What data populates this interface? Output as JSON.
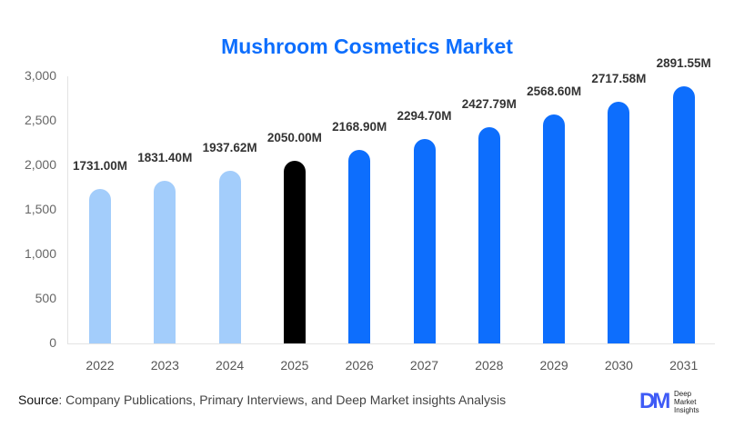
{
  "chart_data": {
    "type": "bar",
    "title": "Mushroom Cosmetics Market",
    "xlabel": "",
    "ylabel": "",
    "ylim": [
      0,
      3000
    ],
    "yticks": [
      "0",
      "500",
      "1,000",
      "1,500",
      "2,000",
      "2,500",
      "3,000"
    ],
    "grid": false,
    "categories": [
      "2022",
      "2023",
      "2024",
      "2025",
      "2026",
      "2027",
      "2028",
      "2029",
      "2030",
      "2031"
    ],
    "values": [
      1731.0,
      1831.4,
      1937.62,
      2050.0,
      2168.9,
      2294.7,
      2427.79,
      2568.6,
      2717.58,
      2891.55
    ],
    "labels": [
      "1731.00M",
      "1831.40M",
      "1937.62M",
      "2050.00M",
      "2168.90M",
      "2294.70M",
      "2427.79M",
      "2568.60M",
      "2717.58M",
      "2891.55M"
    ],
    "colors": [
      "#a3cdfb",
      "#a3cdfb",
      "#a3cdfb",
      "#000000",
      "#0d6efd",
      "#0d6efd",
      "#0d6efd",
      "#0d6efd",
      "#0d6efd",
      "#0d6efd"
    ],
    "legend": null
  },
  "footer": {
    "source_label": "Source",
    "source_text": ": Company Publications, Primary Interviews, and Deep Market insights Analysis",
    "logo_mark": "DM",
    "logo_lines": [
      "Deep",
      "Market",
      "Insights"
    ]
  }
}
